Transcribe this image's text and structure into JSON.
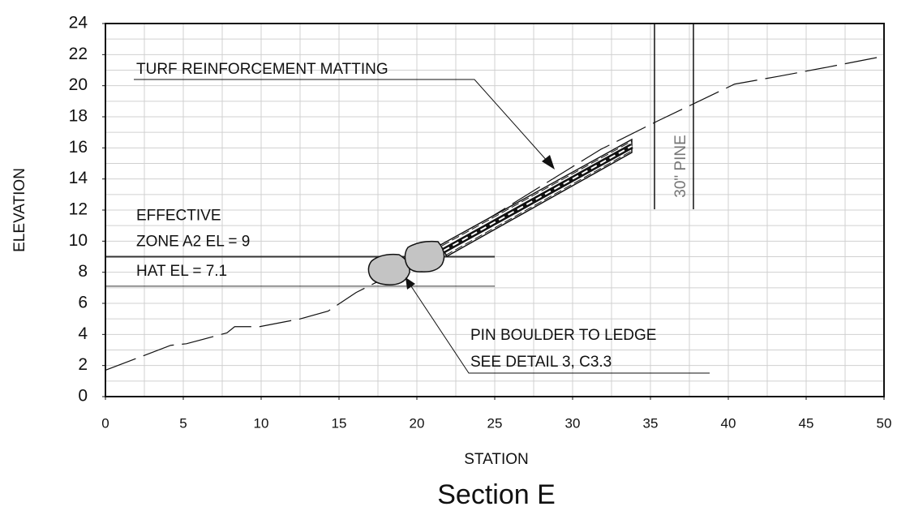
{
  "chart_data": {
    "type": "line",
    "title": "Section E",
    "xlabel": "STATION",
    "ylabel": "ELEVATION",
    "x": [
      0,
      4.2,
      5.2,
      7.8,
      8.3,
      9.9,
      12.5,
      14.3,
      16.1,
      19.3,
      22.4,
      27.1,
      31.8,
      35.4,
      40.4,
      43.2,
      46.4,
      50
    ],
    "values": [
      1.7,
      3.3,
      3.4,
      4.1,
      4.5,
      4.5,
      5.0,
      5.5,
      6.7,
      8.3,
      10.1,
      13.0,
      15.9,
      17.7,
      20.1,
      20.6,
      21.2,
      21.9
    ],
    "xlim": [
      0,
      50
    ],
    "ylim": [
      0,
      24
    ],
    "xticks": [
      0,
      5,
      10,
      15,
      20,
      25,
      30,
      35,
      40,
      45,
      50
    ],
    "yticks": [
      0,
      2,
      4,
      6,
      8,
      10,
      12,
      14,
      16,
      18,
      20,
      22,
      24
    ],
    "x_grid": [
      0,
      2.5,
      5,
      7.5,
      10,
      12.5,
      15,
      17.5,
      20,
      22.5,
      25,
      27.5,
      30,
      32.5,
      35,
      37.5,
      40,
      42.5,
      45,
      47.5,
      50
    ],
    "y_grid": [
      0,
      1,
      2,
      3,
      4,
      5,
      6,
      7,
      8,
      9,
      10,
      11,
      12,
      13,
      14,
      15,
      16,
      17,
      18,
      19,
      20,
      21,
      22,
      23,
      24
    ],
    "reference_lines": [
      {
        "value": 9,
        "x": [
          0,
          25
        ],
        "label": [
          "EFFECTIVE",
          "ZONE A2 EL = 9"
        ]
      },
      {
        "value": 7.1,
        "x": [
          0,
          25
        ],
        "label": [
          "HAT EL = 7.1"
        ]
      }
    ],
    "annotations": {
      "matting": "TURF REINFORCEMENT MATTING",
      "boulder": [
        "PIN BOULDER TO LEDGE",
        "SEE DETAIL 3, C3.3"
      ],
      "tree": "30\" PINE"
    }
  }
}
